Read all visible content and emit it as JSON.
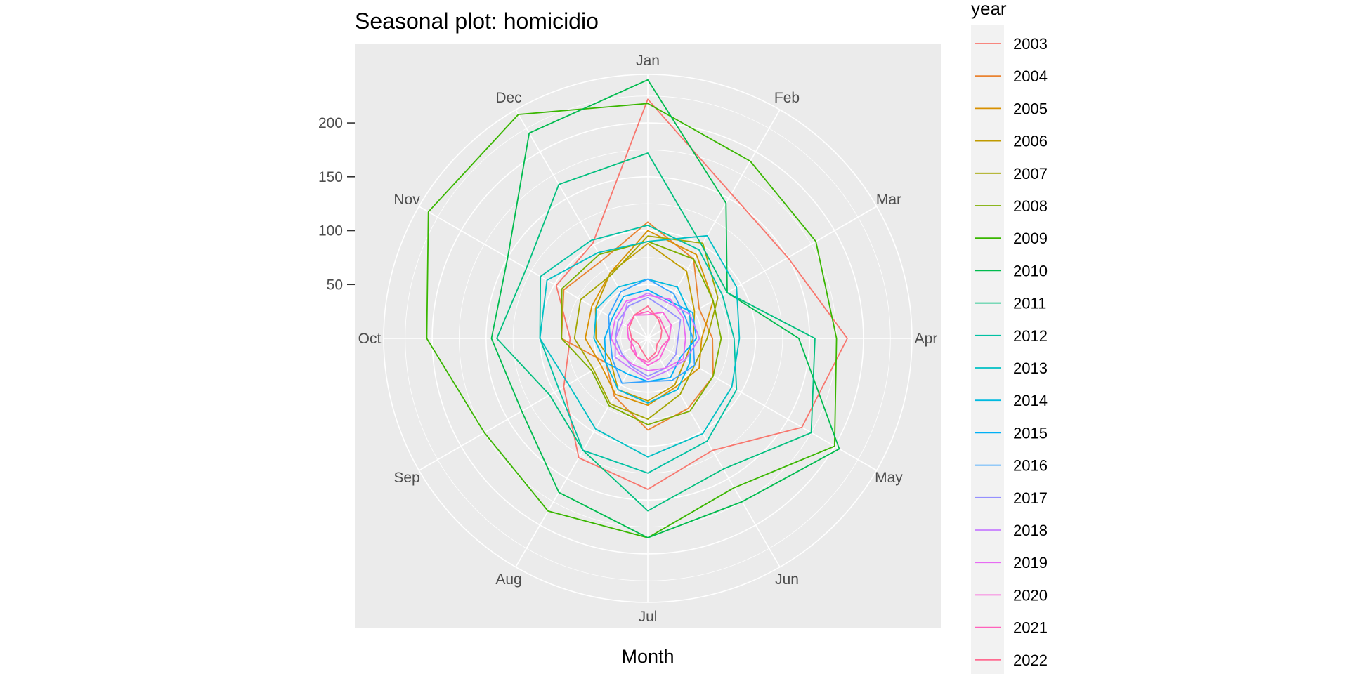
{
  "chart_data": {
    "type": "line",
    "coordinate_system": "polar",
    "title": "Seasonal plot: homicidio",
    "xlabel": "Month",
    "ylabel": "",
    "categories": [
      "Jan",
      "Feb",
      "Mar",
      "Apr",
      "May",
      "Jun",
      "Jul",
      "Aug",
      "Sep",
      "Oct",
      "Nov",
      "Dec"
    ],
    "y_ticks": [
      50,
      100,
      150,
      200
    ],
    "ylim": [
      0,
      245
    ],
    "grid": true,
    "legend": {
      "title": "year",
      "placement": "right"
    },
    "series": [
      {
        "name": "2003",
        "color": "#F8766D",
        "values": [
          222,
          155,
          150,
          185,
          165,
          120,
          140,
          128,
          90,
          72,
          98,
          102
        ]
      },
      {
        "name": "2004",
        "color": "#EA8331",
        "values": [
          108,
          85,
          55,
          60,
          70,
          75,
          85,
          62,
          45,
          80,
          90,
          84
        ]
      },
      {
        "name": "2005",
        "color": "#D89000",
        "values": [
          100,
          90,
          70,
          50,
          55,
          52,
          62,
          60,
          50,
          58,
          60,
          70
        ]
      },
      {
        "name": "2006",
        "color": "#C09B00",
        "values": [
          88,
          72,
          50,
          42,
          40,
          50,
          58,
          55,
          40,
          48,
          56,
          70
        ]
      },
      {
        "name": "2007",
        "color": "#A3A500",
        "values": [
          95,
          102,
          75,
          55,
          50,
          60,
          75,
          70,
          58,
          68,
          72,
          68
        ]
      },
      {
        "name": "2008",
        "color": "#7CAE00",
        "values": [
          90,
          85,
          70,
          68,
          70,
          78,
          80,
          72,
          60,
          80,
          92,
          90
        ]
      },
      {
        "name": "2009",
        "color": "#39B600",
        "values": [
          218,
          190,
          180,
          175,
          200,
          160,
          185,
          185,
          175,
          205,
          235,
          240
        ]
      },
      {
        "name": "2010",
        "color": "#00BB4E",
        "values": [
          240,
          145,
          85,
          140,
          205,
          175,
          185,
          165,
          135,
          145,
          150,
          220
        ]
      },
      {
        "name": "2011",
        "color": "#00BF7D",
        "values": [
          172,
          100,
          85,
          155,
          175,
          140,
          160,
          120,
          105,
          140,
          130,
          165
        ]
      },
      {
        "name": "2012",
        "color": "#00C1A3",
        "values": [
          105,
          95,
          80,
          80,
          95,
          110,
          125,
          120,
          95,
          100,
          115,
          105
        ]
      },
      {
        "name": "2013",
        "color": "#00BFC4",
        "values": [
          90,
          110,
          95,
          85,
          90,
          102,
          110,
          97,
          85,
          100,
          108,
          92
        ]
      },
      {
        "name": "2014",
        "color": "#00BAE0",
        "values": [
          55,
          55,
          45,
          40,
          45,
          55,
          60,
          55,
          45,
          50,
          55,
          55
        ]
      },
      {
        "name": "2015",
        "color": "#00B0F6",
        "values": [
          45,
          40,
          48,
          45,
          35,
          42,
          40,
          38,
          45,
          40,
          38,
          45
        ]
      },
      {
        "name": "2016",
        "color": "#35A2FF",
        "values": [
          55,
          48,
          40,
          42,
          50,
          45,
          40,
          48,
          38,
          35,
          42,
          50
        ]
      },
      {
        "name": "2017",
        "color": "#9590FF",
        "values": [
          38,
          32,
          35,
          28,
          30,
          32,
          35,
          30,
          28,
          30,
          32,
          35
        ]
      },
      {
        "name": "2018",
        "color": "#C77CFF",
        "values": [
          42,
          38,
          45,
          48,
          40,
          35,
          38,
          32,
          35,
          30,
          28,
          38
        ]
      },
      {
        "name": "2019",
        "color": "#E76BF3",
        "values": [
          40,
          42,
          38,
          35,
          38,
          32,
          30,
          28,
          30,
          34,
          35,
          40
        ]
      },
      {
        "name": "2020",
        "color": "#FA62DB",
        "values": [
          22,
          28,
          25,
          20,
          18,
          22,
          25,
          20,
          15,
          18,
          22,
          25
        ]
      },
      {
        "name": "2021",
        "color": "#FF62BC",
        "values": [
          25,
          22,
          18,
          20,
          15,
          18,
          22,
          20,
          18,
          15,
          20,
          25
        ]
      },
      {
        "name": "2022",
        "color": "#FF6C91",
        "values": [
          30,
          20,
          15,
          12,
          10,
          15,
          20,
          12,
          10,
          15,
          20,
          25
        ]
      }
    ]
  }
}
